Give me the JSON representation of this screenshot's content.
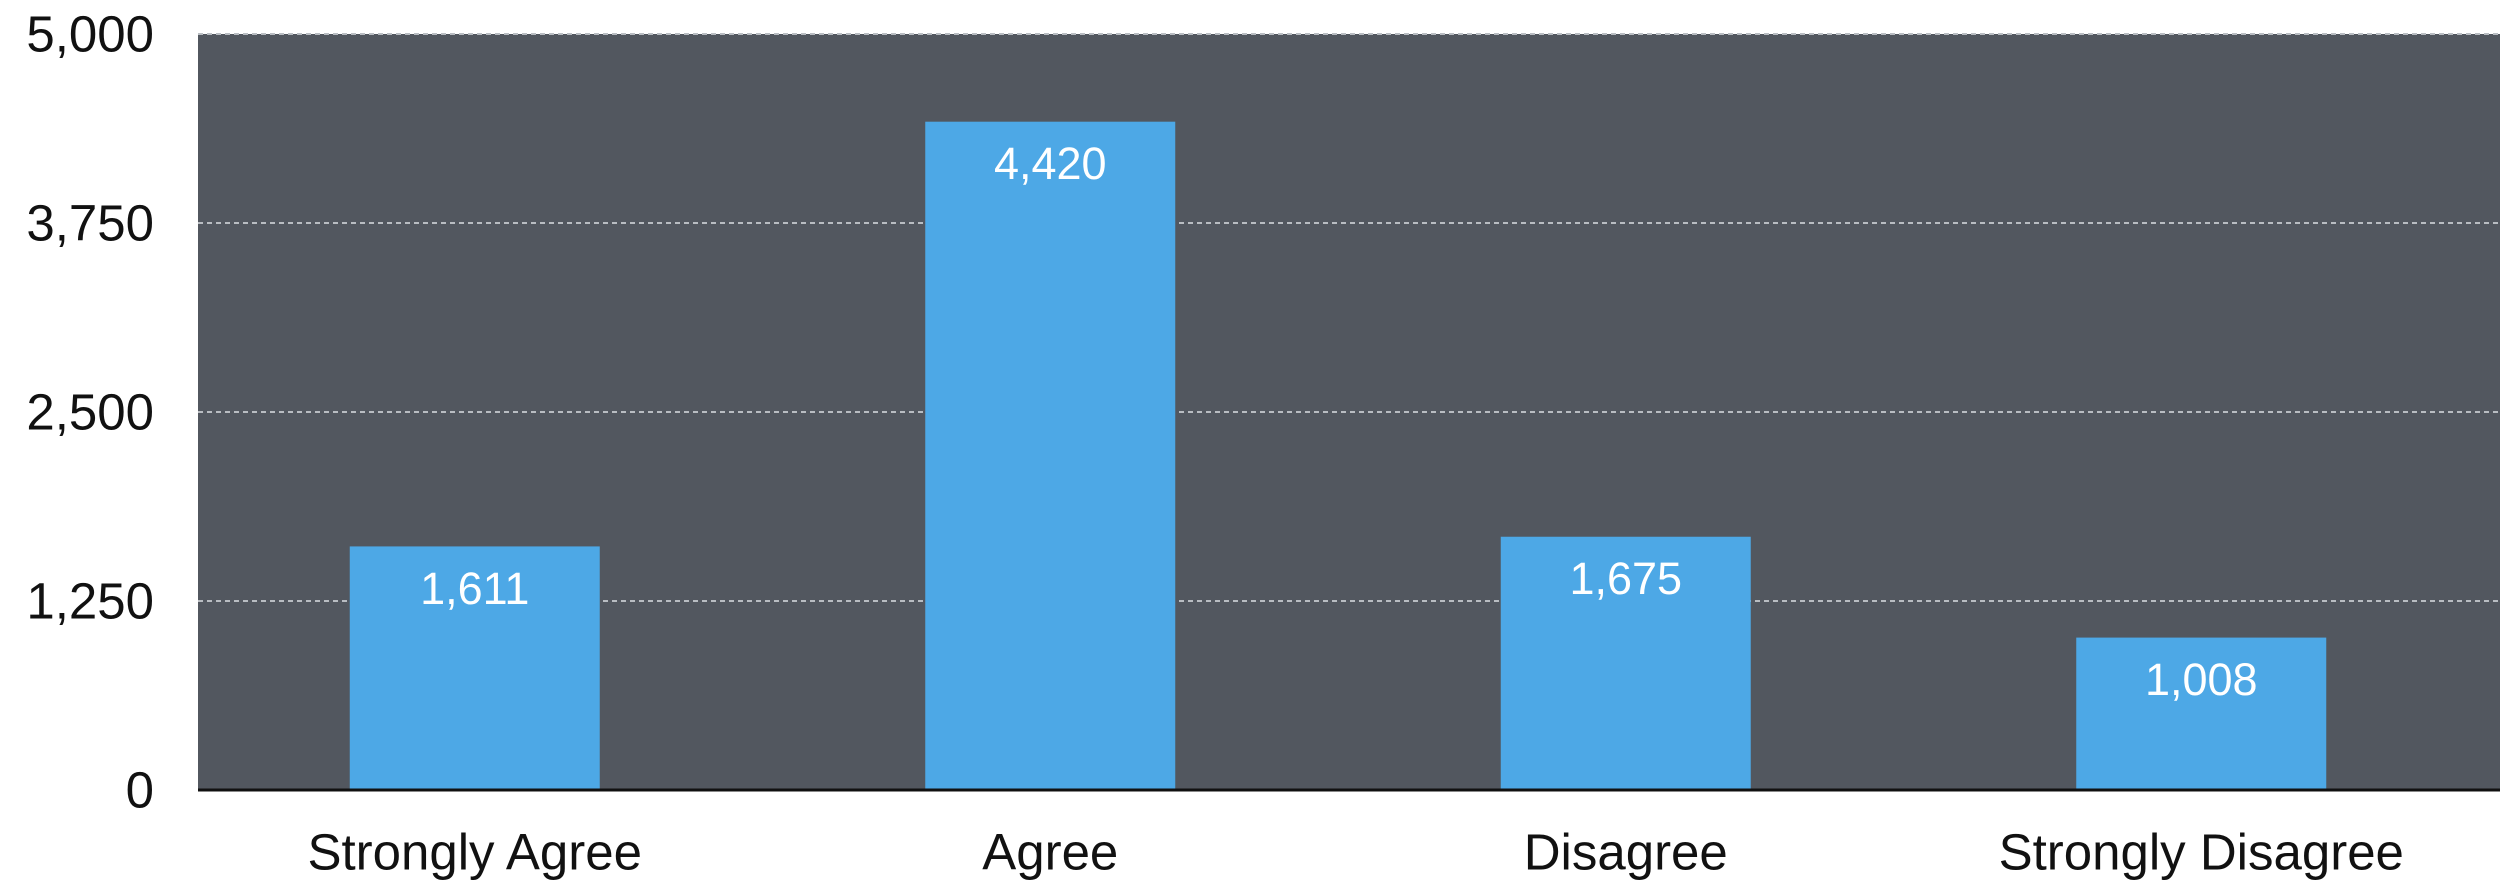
{
  "chart_data": {
    "type": "bar",
    "title": "",
    "xlabel": "",
    "ylabel": "",
    "categories": [
      "Strongly Agree",
      "Agree",
      "Disagree",
      "Strongly Disagree"
    ],
    "values": [
      1611,
      4420,
      1675,
      1008
    ],
    "value_labels": [
      "1,611",
      "4,420",
      "1,675",
      "1,008"
    ],
    "ylim": [
      0,
      5000
    ],
    "yticks": [
      0,
      1250,
      2500,
      3750,
      5000
    ],
    "ytick_labels": [
      "0",
      "1,250",
      "2,500",
      "3,750",
      "5,000"
    ],
    "grid": true,
    "legend": "none",
    "colors": {
      "bar": "#4da8e6",
      "plot_background": "#52575f",
      "gridline": "#b9bdc2",
      "axis": "#111111",
      "value_label": "#ffffff"
    }
  }
}
